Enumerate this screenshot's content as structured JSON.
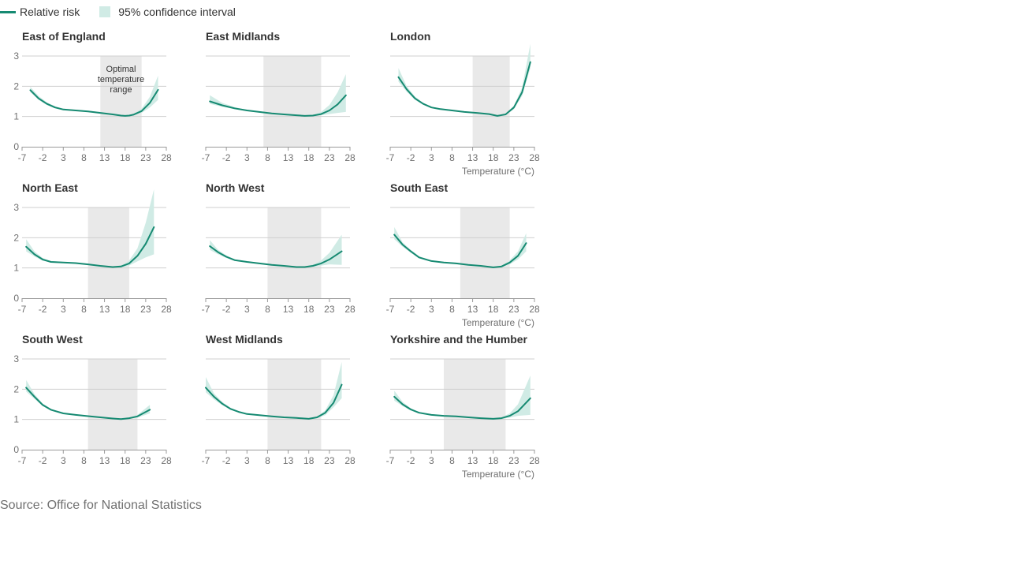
{
  "legend": {
    "line_label": "Relative risk",
    "band_label": "95% confidence interval"
  },
  "source": "Source: Office for National Statistics",
  "colors": {
    "line": "#168a72",
    "band": "#d0ebe5",
    "optimal": "#e9e9e9",
    "grid": "#cfcfcf",
    "text": "#333333",
    "muted": "#707070"
  },
  "chart_data": {
    "type": "line",
    "layout": "small-multiples 3x3",
    "xlabel": "Temperature (°C)",
    "ylabel": "",
    "xticks": [
      -7,
      -2,
      3,
      8,
      13,
      18,
      23,
      28
    ],
    "yticks": [
      0,
      1,
      2,
      3
    ],
    "xlim": [
      -7,
      28
    ],
    "ylim": [
      0,
      3
    ],
    "grid": true,
    "legend_position": "top-left",
    "series_names": [
      "Relative risk",
      "95% confidence interval"
    ],
    "annotation": "Optimal temperature range",
    "panels": [
      {
        "name": "East of England",
        "optimal": [
          12,
          22
        ],
        "x": [
          -5,
          -3,
          -1,
          1,
          3,
          6,
          9,
          12,
          15,
          17,
          18,
          19,
          20,
          22,
          24,
          26
        ],
        "y": [
          1.87,
          1.6,
          1.42,
          1.3,
          1.23,
          1.2,
          1.17,
          1.12,
          1.07,
          1.03,
          1.02,
          1.03,
          1.06,
          1.18,
          1.45,
          1.88
        ],
        "lower": [
          1.8,
          1.55,
          1.38,
          1.27,
          1.21,
          1.18,
          1.15,
          1.1,
          1.05,
          1.02,
          1.01,
          1.02,
          1.04,
          1.12,
          1.3,
          1.55
        ],
        "upper": [
          1.98,
          1.68,
          1.47,
          1.34,
          1.26,
          1.22,
          1.19,
          1.15,
          1.09,
          1.05,
          1.04,
          1.05,
          1.09,
          1.26,
          1.65,
          2.35
        ]
      },
      {
        "name": "East Midlands",
        "optimal": [
          7,
          21
        ],
        "x": [
          -6,
          -3,
          0,
          3,
          6,
          9,
          12,
          15,
          17,
          19,
          21,
          23,
          25,
          27
        ],
        "y": [
          1.5,
          1.37,
          1.27,
          1.2,
          1.15,
          1.1,
          1.07,
          1.04,
          1.02,
          1.03,
          1.08,
          1.2,
          1.4,
          1.7
        ],
        "lower": [
          1.42,
          1.32,
          1.24,
          1.18,
          1.13,
          1.09,
          1.05,
          1.03,
          1.01,
          1.01,
          1.04,
          1.08,
          1.12,
          1.15
        ],
        "upper": [
          1.7,
          1.45,
          1.31,
          1.22,
          1.17,
          1.12,
          1.09,
          1.06,
          1.04,
          1.06,
          1.15,
          1.38,
          1.8,
          2.4
        ]
      },
      {
        "name": "London",
        "optimal": [
          13,
          22
        ],
        "x": [
          -5,
          -3,
          -1,
          1,
          3,
          5,
          8,
          11,
          14,
          17,
          19,
          21,
          23,
          25,
          27
        ],
        "y": [
          2.3,
          1.9,
          1.6,
          1.42,
          1.3,
          1.25,
          1.2,
          1.15,
          1.12,
          1.08,
          1.02,
          1.07,
          1.3,
          1.8,
          2.8
        ],
        "lower": [
          2.15,
          1.82,
          1.55,
          1.39,
          1.28,
          1.23,
          1.18,
          1.14,
          1.11,
          1.07,
          1.01,
          1.05,
          1.24,
          1.68,
          2.6
        ],
        "upper": [
          2.6,
          2.0,
          1.66,
          1.45,
          1.32,
          1.27,
          1.22,
          1.16,
          1.13,
          1.09,
          1.03,
          1.09,
          1.36,
          1.95,
          3.4
        ]
      },
      {
        "name": "North East",
        "optimal": [
          9,
          19
        ],
        "x": [
          -6,
          -4,
          -2,
          0,
          3,
          6,
          9,
          12,
          15,
          17,
          19,
          21,
          23,
          25
        ],
        "y": [
          1.7,
          1.45,
          1.28,
          1.2,
          1.18,
          1.16,
          1.12,
          1.07,
          1.03,
          1.05,
          1.15,
          1.4,
          1.8,
          2.35
        ],
        "lower": [
          1.55,
          1.38,
          1.24,
          1.18,
          1.16,
          1.14,
          1.1,
          1.05,
          1.01,
          1.02,
          1.08,
          1.22,
          1.35,
          1.45
        ],
        "upper": [
          1.95,
          1.55,
          1.33,
          1.23,
          1.2,
          1.18,
          1.14,
          1.09,
          1.05,
          1.08,
          1.25,
          1.65,
          2.5,
          3.6
        ]
      },
      {
        "name": "North West",
        "optimal": [
          8,
          21
        ],
        "x": [
          -6,
          -4,
          -2,
          0,
          3,
          6,
          9,
          12,
          15,
          17,
          19,
          21,
          23,
          26
        ],
        "y": [
          1.72,
          1.52,
          1.37,
          1.26,
          1.2,
          1.15,
          1.1,
          1.07,
          1.03,
          1.03,
          1.07,
          1.15,
          1.28,
          1.55
        ],
        "lower": [
          1.6,
          1.45,
          1.33,
          1.24,
          1.18,
          1.14,
          1.09,
          1.05,
          1.02,
          1.02,
          1.04,
          1.08,
          1.12,
          1.1
        ],
        "upper": [
          1.92,
          1.6,
          1.42,
          1.29,
          1.22,
          1.17,
          1.12,
          1.09,
          1.05,
          1.05,
          1.11,
          1.25,
          1.5,
          2.1
        ]
      },
      {
        "name": "South East",
        "optimal": [
          10,
          22
        ],
        "x": [
          -6,
          -4,
          -2,
          0,
          3,
          6,
          9,
          12,
          15,
          18,
          20,
          22,
          24,
          26
        ],
        "y": [
          2.1,
          1.77,
          1.55,
          1.35,
          1.23,
          1.18,
          1.15,
          1.1,
          1.07,
          1.02,
          1.05,
          1.18,
          1.4,
          1.82
        ],
        "lower": [
          1.95,
          1.7,
          1.5,
          1.32,
          1.21,
          1.16,
          1.13,
          1.08,
          1.05,
          1.01,
          1.03,
          1.12,
          1.28,
          1.55
        ],
        "upper": [
          2.35,
          1.85,
          1.6,
          1.39,
          1.25,
          1.2,
          1.17,
          1.12,
          1.09,
          1.04,
          1.08,
          1.25,
          1.55,
          2.15
        ]
      },
      {
        "name": "South West",
        "optimal": [
          9,
          21
        ],
        "x": [
          -6,
          -4,
          -2,
          0,
          3,
          6,
          9,
          12,
          15,
          17,
          19,
          21,
          24
        ],
        "y": [
          2.05,
          1.75,
          1.48,
          1.32,
          1.2,
          1.15,
          1.11,
          1.07,
          1.03,
          1.01,
          1.04,
          1.1,
          1.32
        ],
        "lower": [
          1.92,
          1.68,
          1.44,
          1.3,
          1.18,
          1.13,
          1.09,
          1.05,
          1.02,
          1.0,
          1.02,
          1.06,
          1.2
        ],
        "upper": [
          2.3,
          1.84,
          1.53,
          1.35,
          1.22,
          1.17,
          1.13,
          1.09,
          1.05,
          1.03,
          1.06,
          1.15,
          1.48
        ]
      },
      {
        "name": "West Midlands",
        "optimal": [
          8,
          21
        ],
        "x": [
          -7,
          -5,
          -3,
          -1,
          1,
          3,
          6,
          9,
          12,
          15,
          18,
          20,
          22,
          24,
          26
        ],
        "y": [
          2.05,
          1.75,
          1.52,
          1.35,
          1.25,
          1.18,
          1.14,
          1.1,
          1.07,
          1.05,
          1.02,
          1.07,
          1.22,
          1.55,
          2.15
        ],
        "lower": [
          1.9,
          1.66,
          1.47,
          1.32,
          1.23,
          1.16,
          1.12,
          1.08,
          1.05,
          1.03,
          1.01,
          1.04,
          1.14,
          1.4,
          1.7
        ],
        "upper": [
          2.4,
          1.86,
          1.58,
          1.39,
          1.27,
          1.2,
          1.16,
          1.12,
          1.09,
          1.07,
          1.04,
          1.1,
          1.3,
          1.8,
          2.9
        ]
      },
      {
        "name": "Yorkshire and the Humber",
        "optimal": [
          6,
          21
        ],
        "x": [
          -6,
          -4,
          -2,
          0,
          3,
          6,
          9,
          12,
          15,
          18,
          20,
          22,
          24,
          27
        ],
        "y": [
          1.75,
          1.5,
          1.33,
          1.22,
          1.15,
          1.12,
          1.1,
          1.07,
          1.04,
          1.02,
          1.04,
          1.12,
          1.27,
          1.7
        ],
        "lower": [
          1.62,
          1.44,
          1.29,
          1.2,
          1.13,
          1.1,
          1.08,
          1.05,
          1.03,
          1.01,
          1.02,
          1.06,
          1.12,
          1.15
        ],
        "upper": [
          1.95,
          1.58,
          1.37,
          1.25,
          1.17,
          1.14,
          1.12,
          1.09,
          1.06,
          1.04,
          1.07,
          1.2,
          1.5,
          2.45
        ]
      }
    ]
  }
}
